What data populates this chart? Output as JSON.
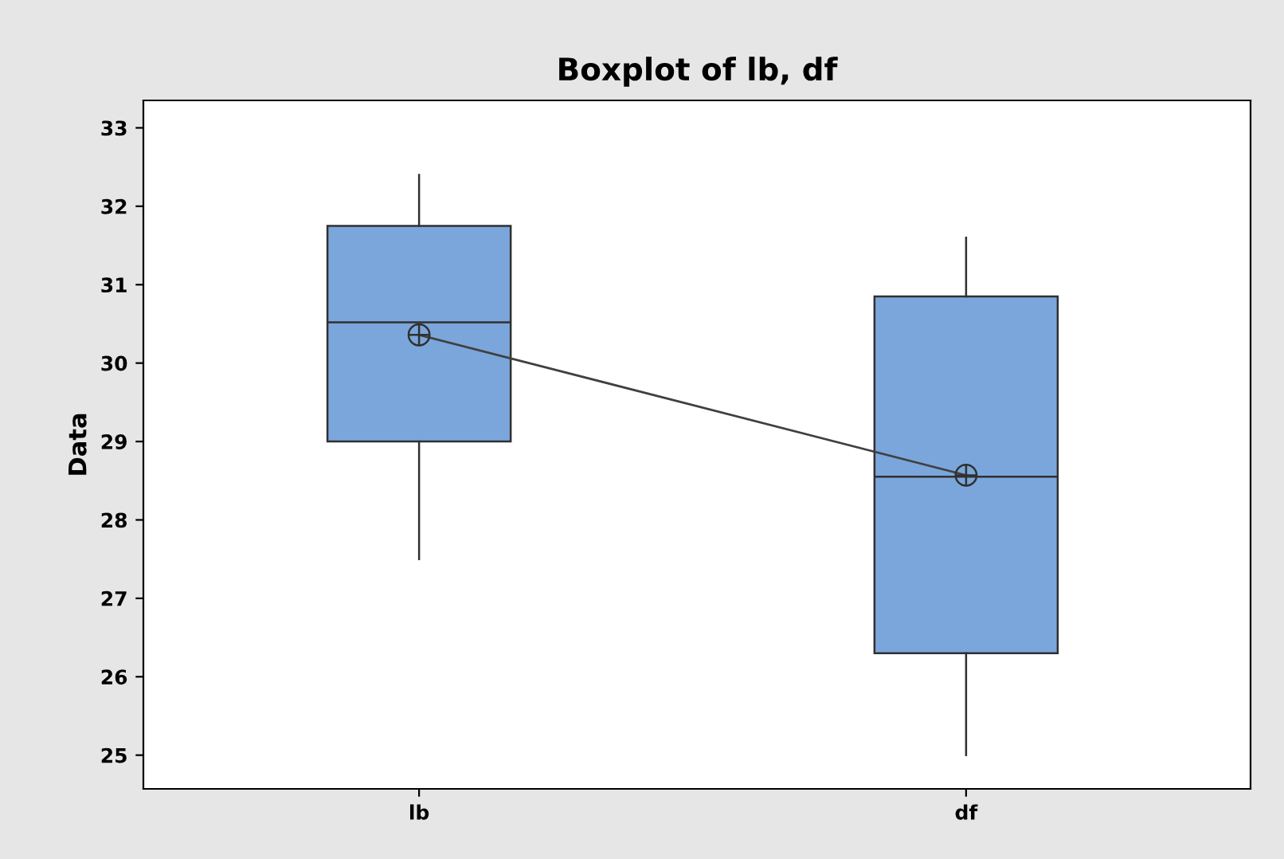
{
  "chart_data": {
    "type": "box",
    "title": "Boxplot of lb, df",
    "ylabel": "Data",
    "categories": [
      "lb",
      "df"
    ],
    "boxes": [
      {
        "low": 27.5,
        "q1": 29.0,
        "median": 30.52,
        "q3": 31.75,
        "high": 32.4,
        "mean": 30.36
      },
      {
        "low": 25.0,
        "q1": 26.3,
        "median": 28.55,
        "q3": 30.85,
        "high": 31.6,
        "mean": 28.57
      }
    ],
    "series": [
      {
        "type": "line",
        "color": "#404040",
        "values": [
          30.36,
          28.57
        ]
      }
    ],
    "color": "#7ba6db",
    "ylim": [
      24.57,
      33.35
    ],
    "yticks": [
      25,
      26,
      27,
      28,
      29,
      30,
      31,
      32,
      33
    ],
    "grid": false,
    "legend": false
  }
}
